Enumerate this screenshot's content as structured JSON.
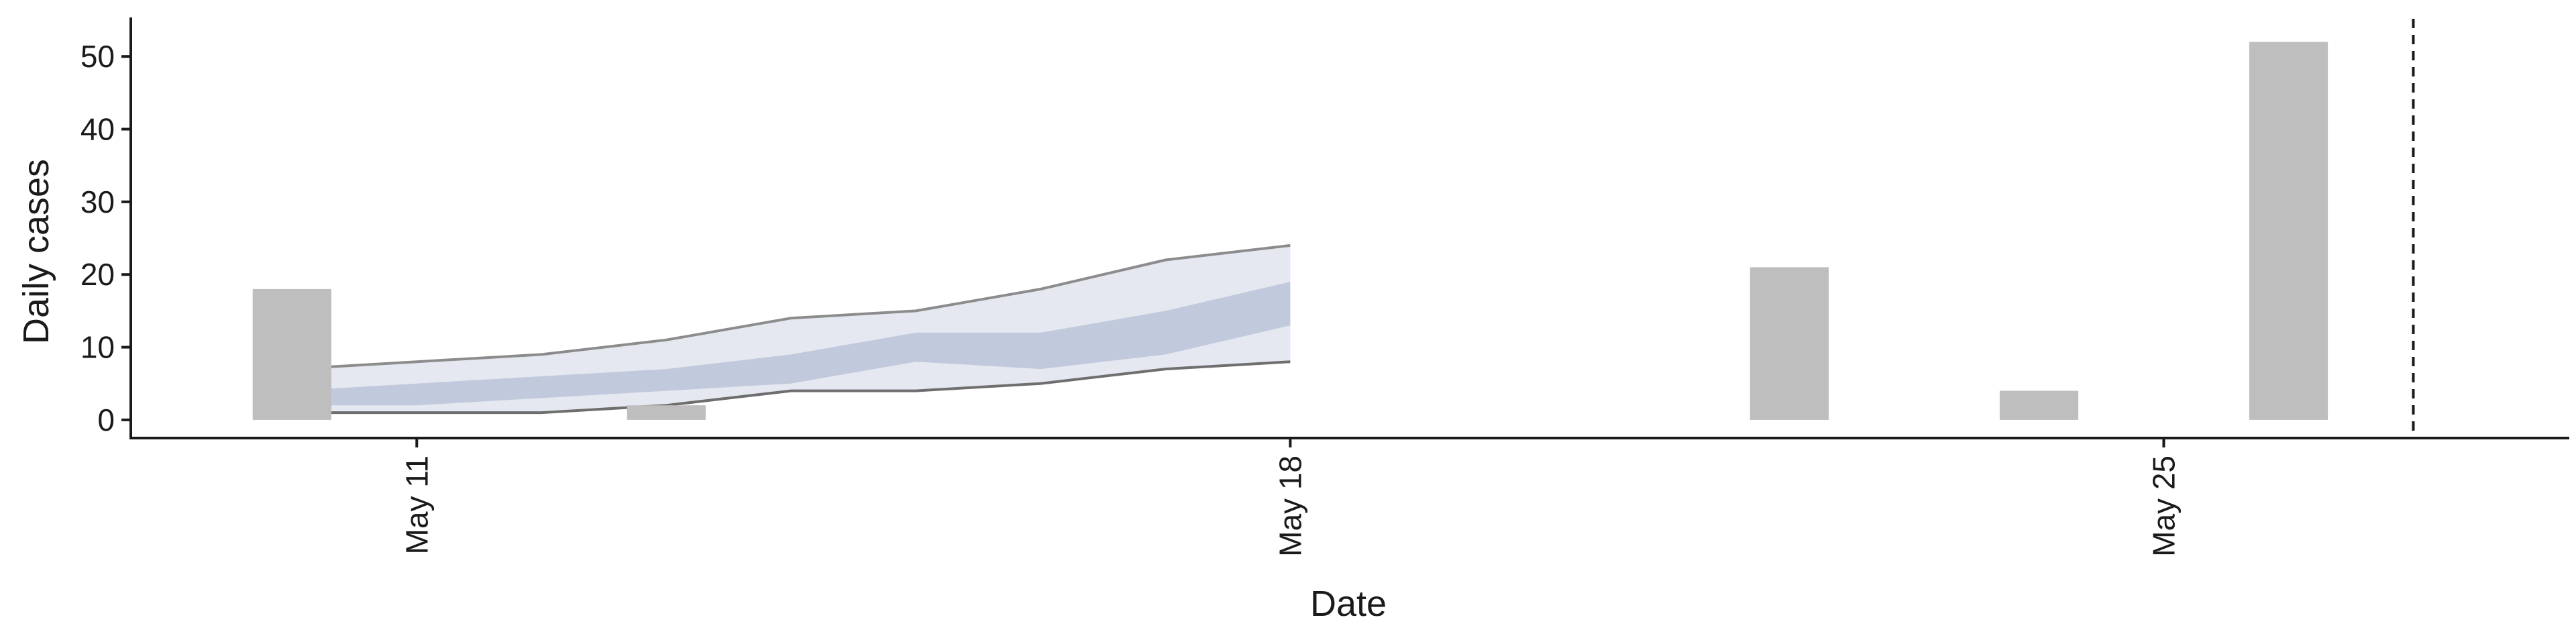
{
  "chart_data": {
    "type": "bar",
    "xlabel": "Date",
    "ylabel": "Daily cases",
    "x_ticks": [
      "May 11",
      "May 18",
      "May 25"
    ],
    "y_ticks": [
      0,
      10,
      20,
      30,
      40,
      50
    ],
    "ylim": [
      -2.5,
      55
    ],
    "xlim": [
      "2020-05-08 17:00",
      "2020-05-28 06:00"
    ],
    "grid": false,
    "legend": "none",
    "bars": {
      "name": "observed",
      "color": "#bebebe",
      "points": [
        {
          "date": "2020-05-10",
          "value": 18
        },
        {
          "date": "2020-05-13",
          "value": 2
        },
        {
          "date": "2020-05-22",
          "value": 21
        },
        {
          "date": "2020-05-24",
          "value": 4
        },
        {
          "date": "2020-05-26",
          "value": 52
        }
      ]
    },
    "forecast": {
      "dates": [
        "2020-05-10",
        "2020-05-11",
        "2020-05-12",
        "2020-05-13",
        "2020-05-14",
        "2020-05-15",
        "2020-05-16",
        "2020-05-17",
        "2020-05-18"
      ],
      "outer_upper": [
        7,
        8,
        9,
        11,
        14,
        15,
        18,
        22,
        24
      ],
      "outer_lower": [
        1,
        1,
        1,
        2,
        4,
        4,
        5,
        7,
        8
      ],
      "inner_upper": [
        4,
        5,
        6,
        7,
        9,
        12,
        12,
        15,
        19
      ],
      "inner_lower": [
        2,
        2,
        3,
        4,
        5,
        8,
        7,
        9,
        13
      ],
      "outer_color": "#d0d5e3",
      "inner_color": "#a8b4cf",
      "line_upper_color": "#8c8c8c",
      "line_lower_color": "#6e6e6e"
    },
    "vline": {
      "date": "2020-05-27",
      "style": "dashed",
      "color": "#1a1a1a"
    }
  }
}
